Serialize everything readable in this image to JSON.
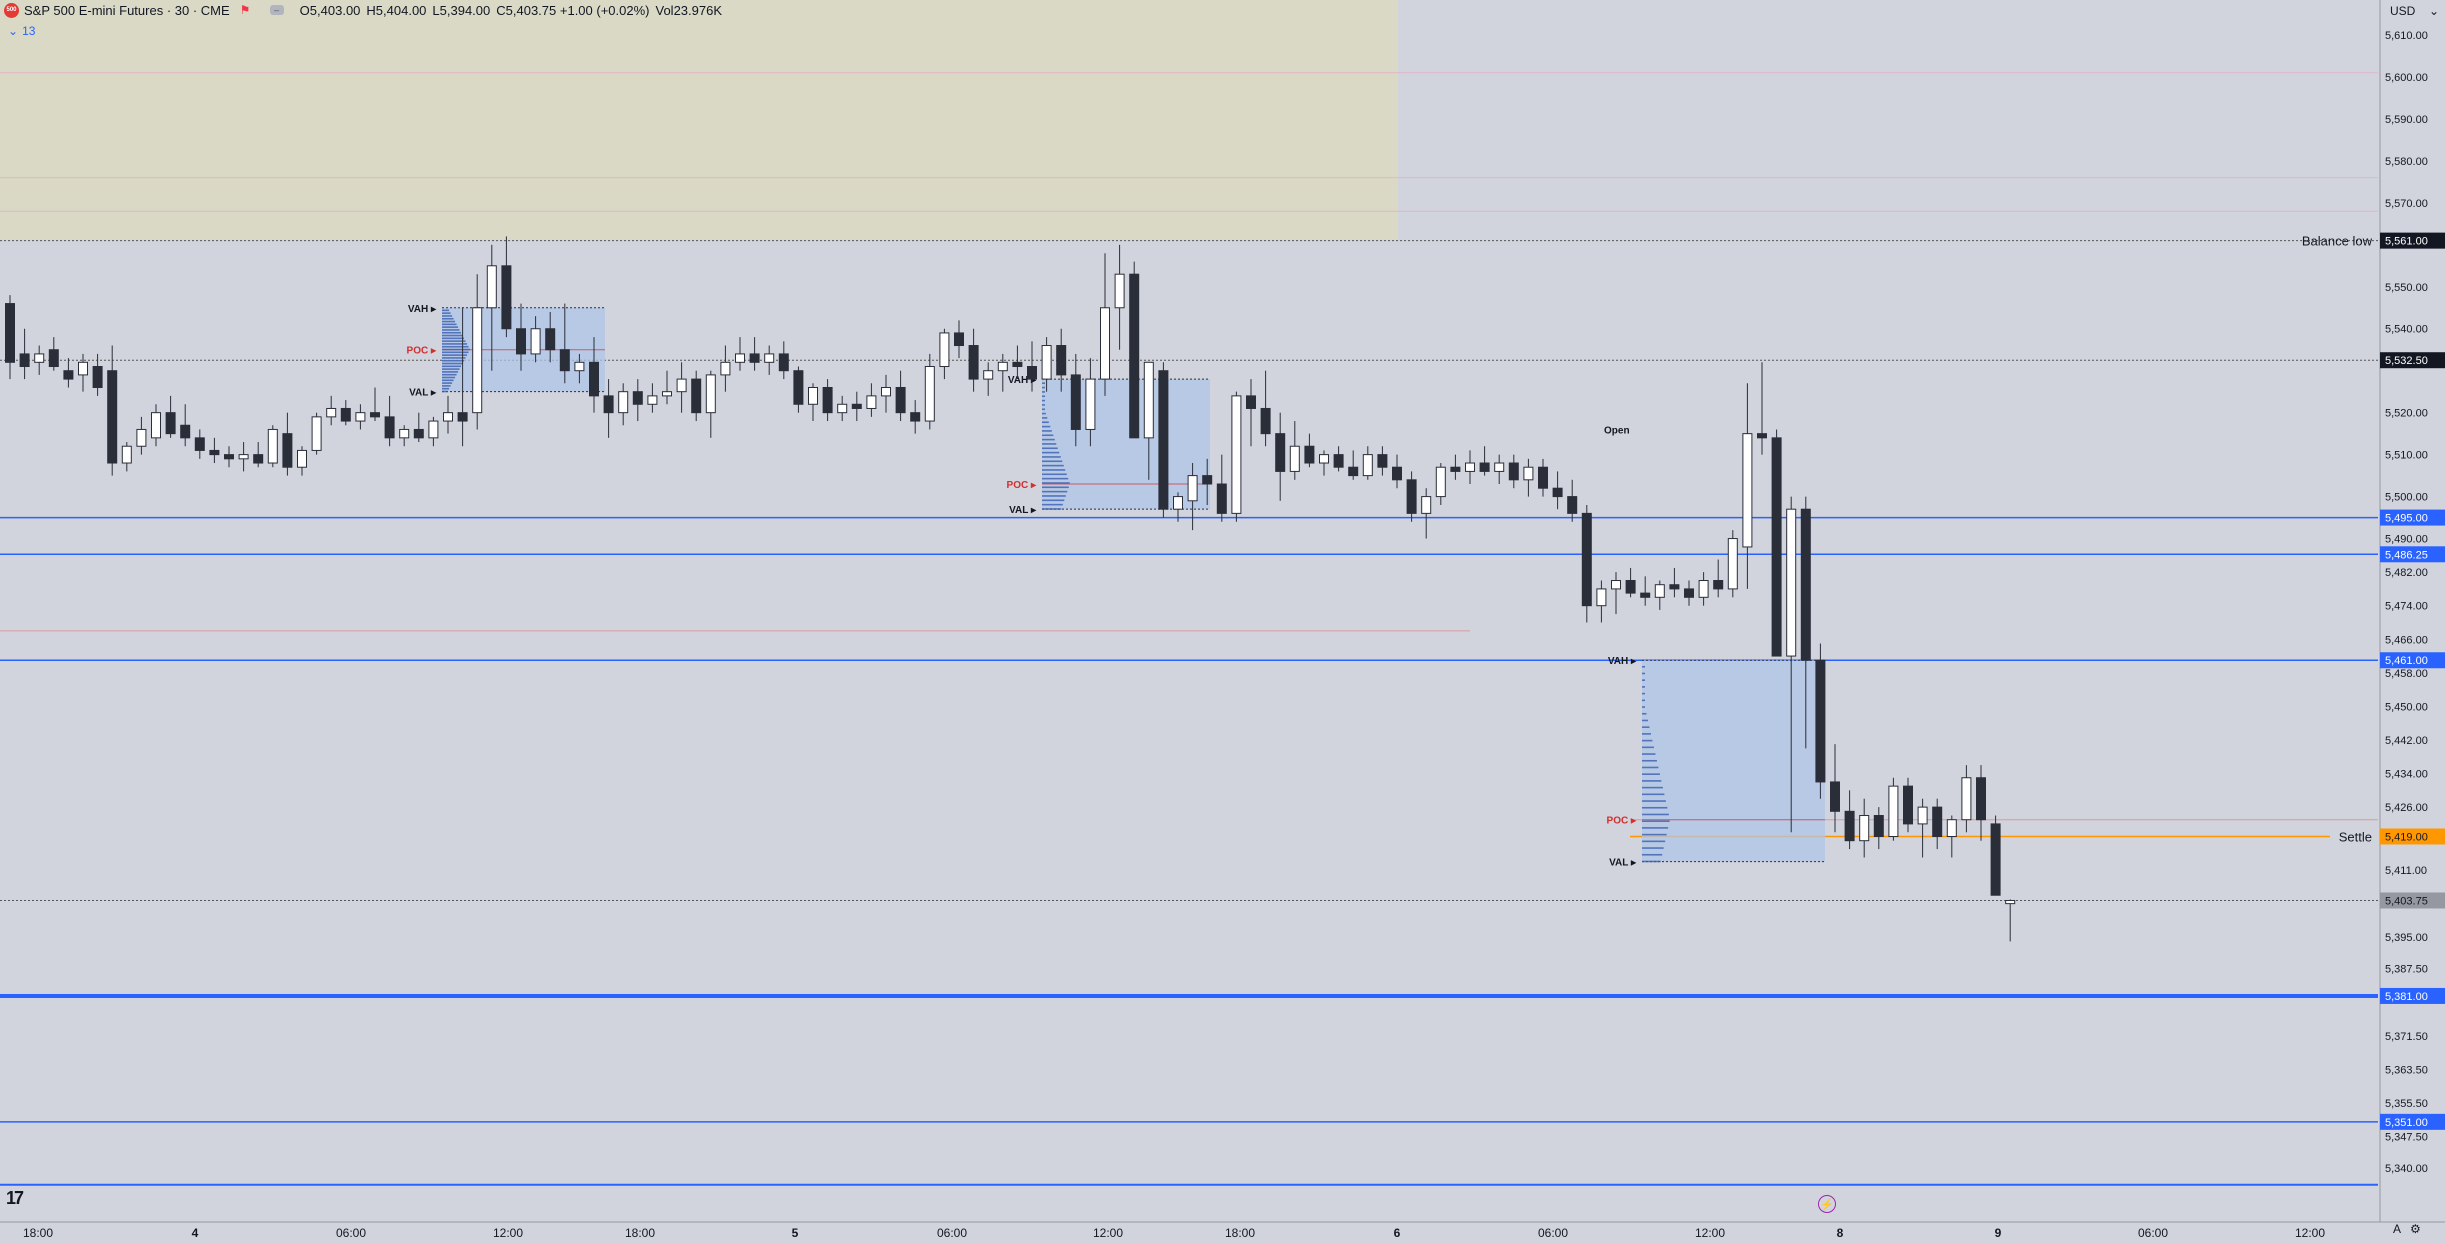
{
  "header": {
    "logo_text": "500",
    "symbol_title": "S&P 500 E-mini Futures · 30 · CME",
    "ohlc": {
      "open_label": "O",
      "open": "5,403.00",
      "high_label": "H",
      "high": "5,404.00",
      "low_label": "L",
      "low": "5,394.00",
      "close_label": "C",
      "close": "5,403.75",
      "change": "+1.00 (+0.02%)",
      "volume_label": "Vol",
      "volume": "23.976K"
    },
    "indicator_count": "13",
    "currency": "USD"
  },
  "colors": {
    "background": "#d1d4dc",
    "up": "#ffffff",
    "down": "#2a2e39",
    "blue_line": "#2962ff",
    "settle": "#ff9800",
    "poc": "#d32f2f",
    "balance_zone": "#d9d9c6",
    "value_area": "#aec6e8"
  },
  "chart_data": {
    "type": "candlestick",
    "symbol": "S&P 500 E-mini Futures",
    "interval": "30",
    "exchange": "CME",
    "y_axis": {
      "range": [
        5334,
        5614
      ],
      "tick_labels": [
        "5,610.00",
        "5,600.00",
        "5,590.00",
        "5,580.00",
        "5,570.00",
        "5,550.00",
        "5,540.00",
        "5,520.00",
        "5,510.00",
        "5,500.00",
        "5,490.00",
        "5,482.00",
        "5,474.00",
        "5,466.00",
        "5,458.00",
        "5,450.00",
        "5,442.00",
        "5,434.00",
        "5,426.00",
        "5,411.00",
        "5,395.00",
        "5,387.50",
        "5,371.50",
        "5,363.50",
        "5,355.50",
        "5,347.50",
        "5,340.00"
      ]
    },
    "price_tags": [
      {
        "label": "5,561.00",
        "price": 5561,
        "kind": "balance"
      },
      {
        "label": "5,532.50",
        "price": 5532.5,
        "kind": "dark"
      },
      {
        "label": "5,495.00",
        "price": 5495,
        "kind": "blue"
      },
      {
        "label": "5,486.25",
        "price": 5486.25,
        "kind": "blue"
      },
      {
        "label": "5,461.00",
        "price": 5461,
        "kind": "blue"
      },
      {
        "label": "5,419.00",
        "price": 5419,
        "kind": "settle"
      },
      {
        "label": "5,403.75",
        "price": 5403.75,
        "kind": "last"
      },
      {
        "label": "5,381.00",
        "price": 5381,
        "kind": "blue"
      },
      {
        "label": "5,351.00",
        "price": 5351,
        "kind": "blue"
      }
    ],
    "line_labels": [
      {
        "text": "Balance low",
        "price": 5561
      },
      {
        "text": "Settle",
        "price": 5419
      }
    ],
    "x_axis": {
      "tick_labels": [
        "18:00",
        "4",
        "06:00",
        "12:00",
        "18:00",
        "5",
        "06:00",
        "12:00",
        "18:00",
        "6",
        "06:00",
        "12:00",
        "8",
        "9",
        "06:00",
        "12:00"
      ]
    },
    "profile_labels": [
      "VAH",
      "POC",
      "VAL",
      "Open"
    ],
    "candles": [
      [
        5546,
        5548,
        5528,
        5532
      ],
      [
        5534,
        5540,
        5528,
        5531
      ],
      [
        5532,
        5536,
        5529,
        5534
      ],
      [
        5535,
        5538,
        5530,
        5531
      ],
      [
        5530,
        5533,
        5526,
        5528
      ],
      [
        5529,
        5534,
        5525,
        5532
      ],
      [
        5531,
        5534,
        5524,
        5526
      ],
      [
        5530,
        5536,
        5505,
        5508
      ],
      [
        5508,
        5513,
        5506,
        5512
      ],
      [
        5512,
        5519,
        5510,
        5516
      ],
      [
        5514,
        5522,
        5512,
        5520
      ],
      [
        5520,
        5524,
        5514,
        5515
      ],
      [
        5517,
        5522,
        5512,
        5514
      ],
      [
        5514,
        5516,
        5509,
        5511
      ],
      [
        5511,
        5514,
        5508,
        5510
      ],
      [
        5510,
        5512,
        5507,
        5509
      ],
      [
        5509,
        5513,
        5506,
        5510
      ],
      [
        5510,
        5513,
        5507,
        5508
      ],
      [
        5508,
        5517,
        5507,
        5516
      ],
      [
        5515,
        5520,
        5505,
        5507
      ],
      [
        5507,
        5512,
        5505,
        5511
      ],
      [
        5511,
        5520,
        5510,
        5519
      ],
      [
        5519,
        5524,
        5517,
        5521
      ],
      [
        5521,
        5523,
        5517,
        5518
      ],
      [
        5518,
        5522,
        5516,
        5520
      ],
      [
        5520,
        5526,
        5518,
        5519
      ],
      [
        5519,
        5524,
        5512,
        5514
      ],
      [
        5514,
        5517,
        5512,
        5516
      ],
      [
        5516,
        5520,
        5513,
        5514
      ],
      [
        5514,
        5519,
        5512,
        5518
      ],
      [
        5518,
        5524,
        5515,
        5520
      ],
      [
        5520,
        5545,
        5512,
        5518
      ],
      [
        5520,
        5553,
        5516,
        5545
      ],
      [
        5545,
        5560,
        5530,
        5555
      ],
      [
        5555,
        5562,
        5538,
        5540
      ],
      [
        5540,
        5546,
        5530,
        5534
      ],
      [
        5534,
        5543,
        5532,
        5540
      ],
      [
        5540,
        5544,
        5532,
        5535
      ],
      [
        5535,
        5546,
        5527,
        5530
      ],
      [
        5530,
        5534,
        5527,
        5532
      ],
      [
        5532,
        5538,
        5520,
        5524
      ],
      [
        5524,
        5528,
        5514,
        5520
      ],
      [
        5520,
        5527,
        5517,
        5525
      ],
      [
        5525,
        5528,
        5518,
        5522
      ],
      [
        5522,
        5527,
        5520,
        5524
      ],
      [
        5524,
        5530,
        5522,
        5525
      ],
      [
        5525,
        5532,
        5520,
        5528
      ],
      [
        5528,
        5530,
        5518,
        5520
      ],
      [
        5520,
        5530,
        5514,
        5529
      ],
      [
        5529,
        5536,
        5525,
        5532
      ],
      [
        5532,
        5538,
        5530,
        5534
      ],
      [
        5534,
        5538,
        5530,
        5532
      ],
      [
        5532,
        5536,
        5529,
        5534
      ],
      [
        5534,
        5537,
        5528,
        5530
      ],
      [
        5530,
        5531,
        5520,
        5522
      ],
      [
        5522,
        5527,
        5518,
        5526
      ],
      [
        5526,
        5528,
        5518,
        5520
      ],
      [
        5520,
        5524,
        5518,
        5522
      ],
      [
        5522,
        5525,
        5518,
        5521
      ],
      [
        5521,
        5527,
        5519,
        5524
      ],
      [
        5524,
        5529,
        5520,
        5526
      ],
      [
        5526,
        5530,
        5518,
        5520
      ],
      [
        5520,
        5523,
        5515,
        5518
      ],
      [
        5518,
        5534,
        5516,
        5531
      ],
      [
        5531,
        5540,
        5528,
        5539
      ],
      [
        5539,
        5542,
        5533,
        5536
      ],
      [
        5536,
        5540,
        5525,
        5528
      ],
      [
        5528,
        5532,
        5524,
        5530
      ],
      [
        5530,
        5534,
        5525,
        5532
      ],
      [
        5532,
        5536,
        5528,
        5531
      ],
      [
        5531,
        5537,
        5525,
        5528
      ],
      [
        5528,
        5538,
        5525,
        5536
      ],
      [
        5536,
        5540,
        5525,
        5529
      ],
      [
        5529,
        5534,
        5512,
        5516
      ],
      [
        5516,
        5533,
        5512,
        5528
      ],
      [
        5528,
        5558,
        5524,
        5545
      ],
      [
        5545,
        5560,
        5535,
        5553
      ],
      [
        5553,
        5556,
        5514,
        5514
      ],
      [
        5514,
        5532,
        5504,
        5532
      ],
      [
        5530,
        5532,
        5495,
        5497
      ],
      [
        5497,
        5501,
        5494,
        5500
      ],
      [
        5499,
        5508,
        5492,
        5505
      ],
      [
        5505,
        5509,
        5498,
        5503
      ],
      [
        5503,
        5510,
        5494,
        5496
      ],
      [
        5496,
        5525,
        5494,
        5524
      ],
      [
        5524,
        5528,
        5512,
        5521
      ],
      [
        5521,
        5530,
        5512,
        5515
      ],
      [
        5515,
        5520,
        5499,
        5506
      ],
      [
        5506,
        5518,
        5504,
        5512
      ],
      [
        5512,
        5515,
        5507,
        5508
      ],
      [
        5508,
        5511,
        5505,
        5510
      ],
      [
        5510,
        5512,
        5506,
        5507
      ],
      [
        5507,
        5511,
        5504,
        5505
      ],
      [
        5505,
        5512,
        5504,
        5510
      ],
      [
        5510,
        5512,
        5505,
        5507
      ],
      [
        5507,
        5510,
        5502,
        5504
      ],
      [
        5504,
        5506,
        5494,
        5496
      ],
      [
        5496,
        5502,
        5490,
        5500
      ],
      [
        5500,
        5508,
        5498,
        5507
      ],
      [
        5507,
        5510,
        5504,
        5506
      ],
      [
        5506,
        5511,
        5503,
        5508
      ],
      [
        5508,
        5512,
        5505,
        5506
      ],
      [
        5506,
        5510,
        5503,
        5508
      ],
      [
        5508,
        5510,
        5502,
        5504
      ],
      [
        5504,
        5509,
        5500,
        5507
      ],
      [
        5507,
        5509,
        5500,
        5502
      ],
      [
        5502,
        5506,
        5497,
        5500
      ],
      [
        5500,
        5504,
        5494,
        5496
      ],
      [
        5496,
        5498,
        5470,
        5474
      ],
      [
        5474,
        5480,
        5470,
        5478
      ],
      [
        5478,
        5482,
        5472,
        5480
      ],
      [
        5480,
        5483,
        5476,
        5477
      ],
      [
        5477,
        5481,
        5474,
        5476
      ],
      [
        5476,
        5480,
        5473,
        5479
      ],
      [
        5479,
        5483,
        5476,
        5478
      ],
      [
        5478,
        5480,
        5474,
        5476
      ],
      [
        5476,
        5482,
        5474,
        5480
      ],
      [
        5480,
        5485,
        5476,
        5478
      ],
      [
        5478,
        5492,
        5476,
        5490
      ],
      [
        5488,
        5527,
        5478,
        5515
      ],
      [
        5515,
        5532,
        5510,
        5514
      ],
      [
        5514,
        5516,
        5462,
        5462
      ],
      [
        5462,
        5500,
        5420,
        5497
      ],
      [
        5497,
        5500,
        5440,
        5461
      ],
      [
        5461,
        5465,
        5428,
        5432
      ],
      [
        5432,
        5441,
        5420,
        5425
      ],
      [
        5425,
        5430,
        5416,
        5418
      ],
      [
        5418,
        5428,
        5414,
        5424
      ],
      [
        5424,
        5426,
        5416,
        5419
      ],
      [
        5419,
        5433,
        5418,
        5431
      ],
      [
        5431,
        5433,
        5420,
        5422
      ],
      [
        5422,
        5428,
        5414,
        5426
      ],
      [
        5426,
        5428,
        5416,
        5419
      ],
      [
        5419,
        5424,
        5414,
        5423
      ],
      [
        5423,
        5436,
        5420,
        5433
      ],
      [
        5433,
        5436,
        5418,
        5423
      ],
      [
        5422,
        5424,
        5405,
        5405
      ],
      [
        5403,
        5404,
        5394,
        5403.75
      ]
    ]
  }
}
